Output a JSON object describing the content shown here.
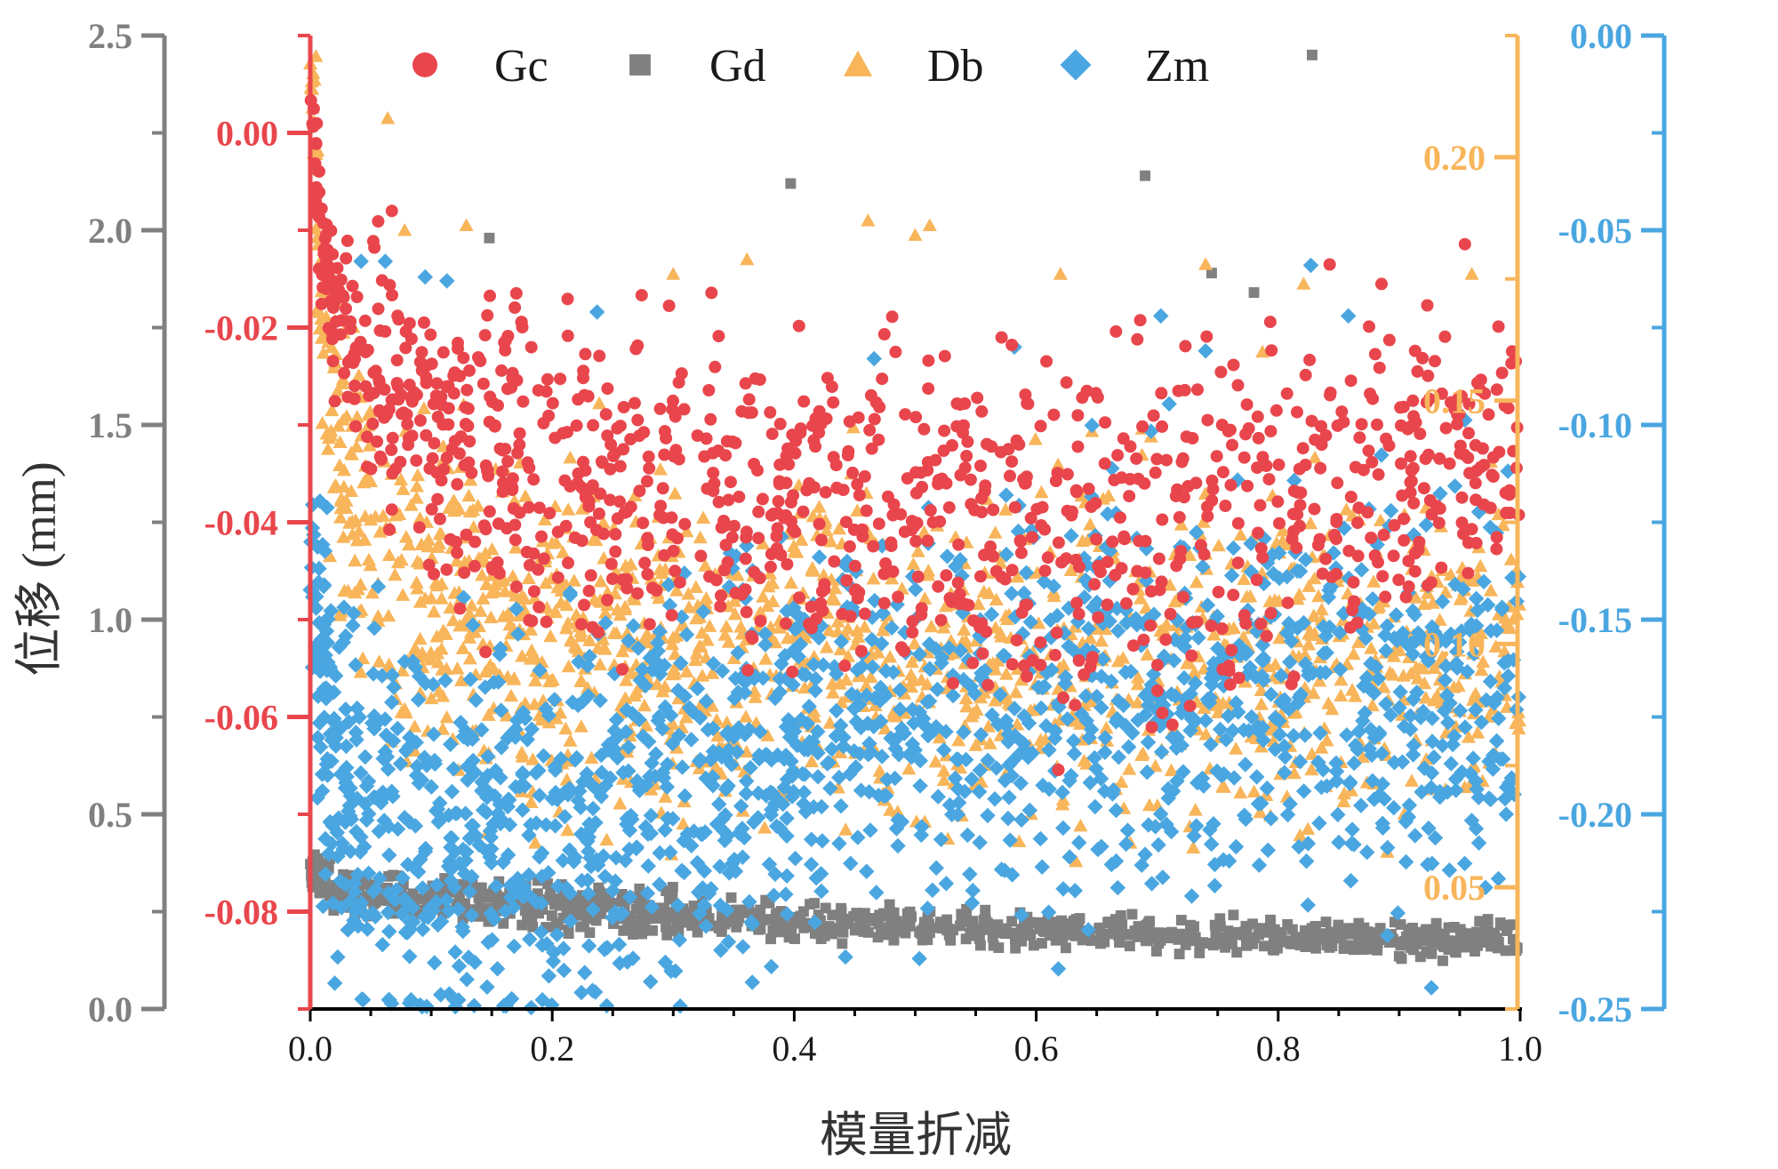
{
  "top_note": "",
  "chart_data": {
    "type": "scatter",
    "title": "",
    "xlabel": "模量折减",
    "x_ticks": [
      "0.0",
      "0.2",
      "0.4",
      "0.6",
      "0.8",
      "1.0"
    ],
    "xlim": [
      0,
      1
    ],
    "grid": false,
    "legend_position": "top",
    "axes": {
      "left_gray": {
        "label": "位移 (mm)",
        "color": "#808080",
        "lim": [
          0,
          2.5
        ],
        "ticks": [
          "0.0",
          "0.5",
          "1.0",
          "1.5",
          "2.0",
          "2.5"
        ]
      },
      "left_red": {
        "color": "#E8464C",
        "lim": [
          -0.09,
          0.01
        ],
        "ticks": [
          "-0.08",
          "-0.06",
          "-0.04",
          "-0.02",
          "0.00"
        ]
      },
      "right_orange": {
        "color": "#F8B55A",
        "lim": [
          0.025,
          0.225
        ],
        "ticks": [
          "0.05",
          "0.10",
          "0.15",
          "0.20"
        ]
      },
      "right_blue": {
        "color": "#4AA6E0",
        "lim": [
          -0.25,
          0.0
        ],
        "ticks": [
          "-0.25",
          "-0.20",
          "-0.15",
          "-0.10",
          "-0.05",
          "0.00"
        ]
      }
    },
    "series": [
      {
        "name": "Gc",
        "marker": "circle",
        "color": "#E8464C",
        "axis": "left_red",
        "x": [
          0.002,
          0.01,
          0.02,
          0.04,
          0.06,
          0.08,
          0.1,
          0.15,
          0.2,
          0.25,
          0.3,
          0.35,
          0.4,
          0.45,
          0.5,
          0.55,
          0.6,
          0.65,
          0.7,
          0.75,
          0.8,
          0.85,
          0.9,
          0.95,
          1.0
        ],
        "y_center": [
          0.002,
          -0.012,
          -0.018,
          -0.022,
          -0.026,
          -0.028,
          -0.03,
          -0.033,
          -0.035,
          -0.036,
          -0.037,
          -0.038,
          -0.038,
          -0.039,
          -0.04,
          -0.04,
          -0.04,
          -0.04,
          -0.04,
          -0.039,
          -0.038,
          -0.036,
          -0.035,
          -0.032,
          -0.03
        ],
        "y_spread": [
          0.004,
          0.006,
          0.008,
          0.01,
          0.012,
          0.013,
          0.014,
          0.014,
          0.014,
          0.014,
          0.014,
          0.014,
          0.014,
          0.014,
          0.014,
          0.014,
          0.016,
          0.018,
          0.02,
          0.018,
          0.016,
          0.015,
          0.014,
          0.013,
          0.012
        ]
      },
      {
        "name": "Gd",
        "marker": "square",
        "color": "#808080",
        "axis": "left_gray",
        "x": [
          0.002,
          0.01,
          0.02,
          0.04,
          0.06,
          0.08,
          0.1,
          0.15,
          0.2,
          0.25,
          0.3,
          0.35,
          0.4,
          0.45,
          0.5,
          0.55,
          0.6,
          0.65,
          0.7,
          0.75,
          0.8,
          0.85,
          0.9,
          0.95,
          1.0
        ],
        "y_center": [
          0.36,
          0.33,
          0.31,
          0.3,
          0.29,
          0.28,
          0.28,
          0.27,
          0.26,
          0.25,
          0.24,
          0.23,
          0.22,
          0.22,
          0.21,
          0.21,
          0.2,
          0.2,
          0.2,
          0.19,
          0.19,
          0.19,
          0.18,
          0.18,
          0.18
        ],
        "y_spread": [
          0.04,
          0.05,
          0.05,
          0.05,
          0.05,
          0.05,
          0.05,
          0.05,
          0.05,
          0.05,
          0.05,
          0.04,
          0.04,
          0.04,
          0.04,
          0.04,
          0.04,
          0.04,
          0.04,
          0.04,
          0.04,
          0.04,
          0.04,
          0.04,
          0.04
        ],
        "outliers_x": [
          0.148,
          0.397,
          0.69,
          0.745,
          0.78,
          0.828
        ],
        "outliers_y": [
          1.98,
          2.12,
          2.14,
          1.89,
          1.84,
          2.45
        ]
      },
      {
        "name": "Db",
        "marker": "triangle",
        "color": "#F8B55A",
        "axis": "right_orange",
        "x": [
          0.002,
          0.01,
          0.02,
          0.04,
          0.06,
          0.08,
          0.1,
          0.15,
          0.2,
          0.25,
          0.3,
          0.35,
          0.4,
          0.45,
          0.5,
          0.55,
          0.6,
          0.65,
          0.7,
          0.75,
          0.8,
          0.85,
          0.9,
          0.95,
          1.0
        ],
        "y_center": [
          0.22,
          0.16,
          0.14,
          0.125,
          0.118,
          0.112,
          0.108,
          0.104,
          0.102,
          0.101,
          0.1,
          0.099,
          0.098,
          0.098,
          0.097,
          0.097,
          0.097,
          0.097,
          0.097,
          0.097,
          0.097,
          0.098,
          0.098,
          0.099,
          0.1
        ],
        "y_spread": [
          0.01,
          0.03,
          0.035,
          0.035,
          0.035,
          0.034,
          0.032,
          0.03,
          0.03,
          0.03,
          0.03,
          0.03,
          0.03,
          0.03,
          0.03,
          0.03,
          0.03,
          0.03,
          0.03,
          0.03,
          0.03,
          0.03,
          0.03,
          0.03,
          0.03
        ],
        "outliers_x": [
          0.064,
          0.078,
          0.129,
          0.3,
          0.361,
          0.461,
          0.5,
          0.512,
          0.62,
          0.74,
          0.787,
          0.821,
          0.96
        ],
        "outliers_y": [
          0.208,
          0.185,
          0.186,
          0.176,
          0.179,
          0.187,
          0.184,
          0.186,
          0.176,
          0.178,
          0.16,
          0.174,
          0.176
        ]
      },
      {
        "name": "Zm",
        "marker": "diamond",
        "color": "#4AA6E0",
        "axis": "right_blue",
        "x": [
          0.002,
          0.01,
          0.02,
          0.04,
          0.06,
          0.08,
          0.1,
          0.15,
          0.2,
          0.25,
          0.3,
          0.35,
          0.4,
          0.45,
          0.5,
          0.55,
          0.6,
          0.65,
          0.7,
          0.75,
          0.8,
          0.85,
          0.9,
          0.95,
          1.0
        ],
        "y_center": [
          -0.14,
          -0.17,
          -0.19,
          -0.2,
          -0.205,
          -0.21,
          -0.21,
          -0.205,
          -0.2,
          -0.195,
          -0.19,
          -0.185,
          -0.18,
          -0.178,
          -0.175,
          -0.173,
          -0.172,
          -0.17,
          -0.17,
          -0.17,
          -0.17,
          -0.17,
          -0.17,
          -0.17,
          -0.168
        ],
        "y_spread": [
          0.03,
          0.04,
          0.045,
          0.045,
          0.045,
          0.045,
          0.045,
          0.045,
          0.045,
          0.045,
          0.045,
          0.045,
          0.045,
          0.045,
          0.045,
          0.045,
          0.045,
          0.045,
          0.045,
          0.045,
          0.045,
          0.045,
          0.045,
          0.045,
          0.045
        ],
        "outliers_x": [
          0.042,
          0.062,
          0.095,
          0.113,
          0.237,
          0.466,
          0.582,
          0.703,
          0.74,
          0.827,
          0.858
        ],
        "outliers_y": [
          -0.058,
          -0.058,
          -0.062,
          -0.063,
          -0.071,
          -0.083,
          -0.08,
          -0.072,
          -0.081,
          -0.059,
          -0.072
        ]
      }
    ]
  }
}
